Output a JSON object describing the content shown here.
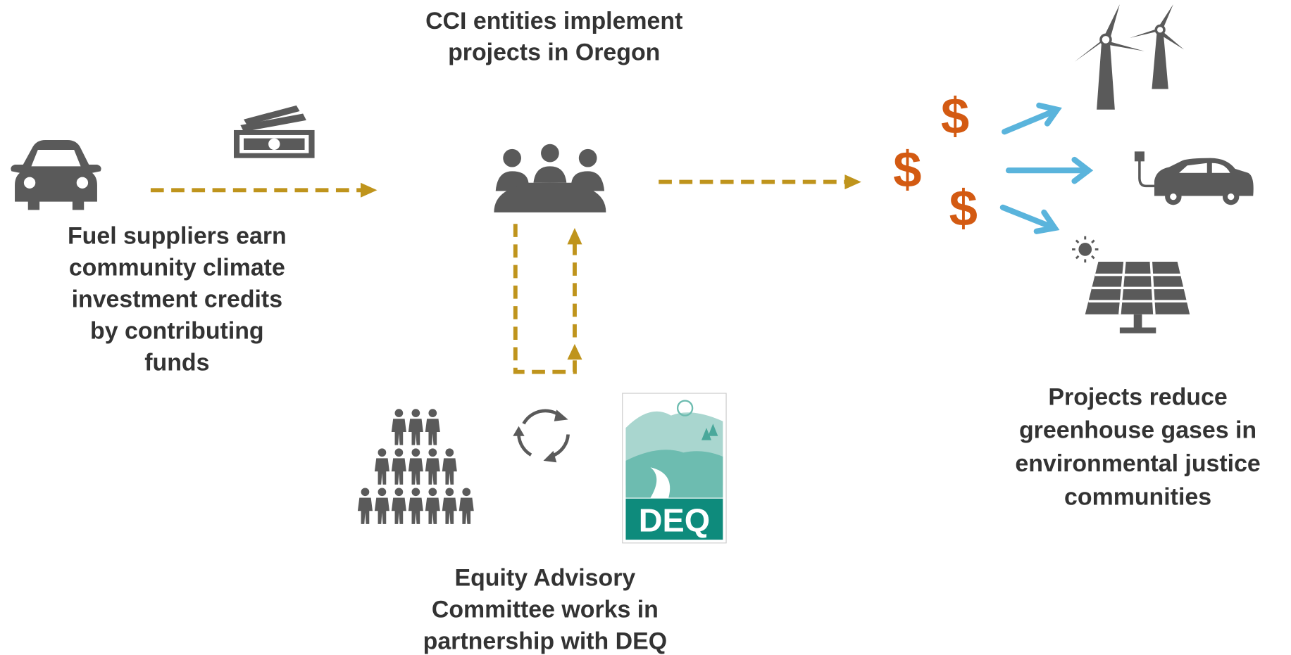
{
  "title": [
    "CCI entities implement",
    "projects in Oregon"
  ],
  "nodes": [
    {
      "label": [
        "Fuel suppliers earn",
        "community climate",
        "investment credits",
        "by contributing",
        "funds"
      ]
    },
    {
      "label": [
        "Equity Advisory",
        "Committee works in",
        "partnership with DEQ"
      ]
    },
    {
      "label": [
        "Projects reduce",
        "greenhouse gases in",
        "environmental justice",
        "communities"
      ]
    }
  ],
  "logo": "DEQ",
  "currency": [
    "$",
    "$",
    "$"
  ]
}
